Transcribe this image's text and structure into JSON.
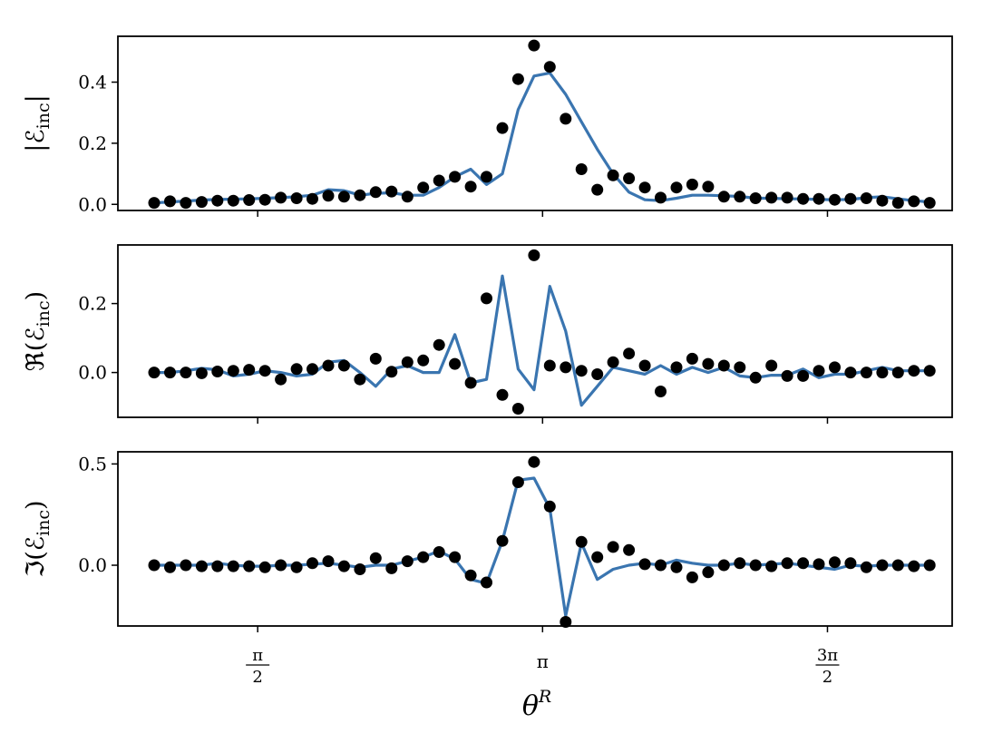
{
  "chart_data": {
    "type": "line",
    "xlabel": "θR",
    "xlabel_base": "θ",
    "xlabel_sup": "R",
    "x_ticks": [
      {
        "value": 1.5708,
        "label": "π/2",
        "num": "π",
        "den": "2"
      },
      {
        "value": 3.1416,
        "label": "π",
        "num": "π",
        "den": ""
      },
      {
        "value": 4.7124,
        "label": "3π/2",
        "num": "3π",
        "den": "2"
      }
    ],
    "xlim": [
      0.8,
      5.4
    ],
    "x": [
      1.0,
      1.0873,
      1.1745,
      1.2618,
      1.3491,
      1.4363,
      1.5236,
      1.6109,
      1.6981,
      1.7854,
      1.8727,
      1.9599,
      2.0472,
      2.1345,
      2.2217,
      2.309,
      2.3963,
      2.4835,
      2.5708,
      2.6581,
      2.7453,
      2.8326,
      2.9199,
      3.0071,
      3.0944,
      3.1817,
      3.2689,
      3.3562,
      3.4435,
      3.5307,
      3.618,
      3.7053,
      3.7925,
      3.8798,
      3.9671,
      4.0543,
      4.1416,
      4.2289,
      4.3161,
      4.4034,
      4.4907,
      4.5779,
      4.6652,
      4.7525,
      4.8397,
      4.927,
      5.0143,
      5.1015,
      5.1888,
      5.2761
    ],
    "panels": [
      {
        "ylabel_prefix": "|",
        "ylabel_var": "ℰ",
        "ylabel_sub": "inc",
        "ylabel_suffix": "|",
        "ylabel": "|ℰinc|",
        "ylim": [
          -0.02,
          0.55
        ],
        "yticks": [
          0.0,
          0.2,
          0.4
        ],
        "ytick_labels": [
          "0.0",
          "0.2",
          "0.4"
        ],
        "series": [
          {
            "kind": "line",
            "color": "#3a75b0",
            "values": [
              0.005,
              0.008,
              0.011,
              0.014,
              0.016,
              0.017,
              0.018,
              0.02,
              0.022,
              0.025,
              0.03,
              0.048,
              0.045,
              0.03,
              0.036,
              0.038,
              0.03,
              0.03,
              0.055,
              0.09,
              0.115,
              0.065,
              0.1,
              0.31,
              0.42,
              0.43,
              0.36,
              0.27,
              0.18,
              0.1,
              0.04,
              0.015,
              0.012,
              0.02,
              0.03,
              0.03,
              0.028,
              0.026,
              0.02,
              0.02,
              0.018,
              0.018,
              0.016,
              0.015,
              0.016,
              0.022,
              0.025,
              0.018,
              0.012,
              0.008
            ]
          },
          {
            "kind": "scatter",
            "color": "#000000",
            "values": [
              0.005,
              0.01,
              0.005,
              0.008,
              0.012,
              0.012,
              0.014,
              0.015,
              0.022,
              0.02,
              0.018,
              0.028,
              0.025,
              0.03,
              0.04,
              0.042,
              0.025,
              0.055,
              0.078,
              0.09,
              0.058,
              0.09,
              0.25,
              0.41,
              0.52,
              0.45,
              0.28,
              0.115,
              0.048,
              0.095,
              0.085,
              0.055,
              0.022,
              0.055,
              0.065,
              0.058,
              0.025,
              0.025,
              0.02,
              0.022,
              0.022,
              0.018,
              0.018,
              0.015,
              0.018,
              0.02,
              0.012,
              0.005,
              0.01,
              0.005
            ]
          }
        ]
      },
      {
        "ylabel_prefix": "ℜ(",
        "ylabel_var": "ℰ",
        "ylabel_sub": "inc",
        "ylabel_suffix": ")",
        "ylabel": "ℜ(ℰinc)",
        "ylim": [
          -0.13,
          0.37
        ],
        "yticks": [
          0.0,
          0.2
        ],
        "ytick_labels": [
          "0.0",
          "0.2"
        ],
        "series": [
          {
            "kind": "line",
            "color": "#3a75b0",
            "values": [
              0.0,
              0.0,
              0.005,
              0.012,
              0.008,
              -0.01,
              -0.005,
              0.005,
              0.0,
              -0.01,
              -0.005,
              0.03,
              0.035,
              0.0,
              -0.04,
              0.01,
              0.02,
              0.0,
              0.0,
              0.11,
              -0.03,
              -0.02,
              0.28,
              0.01,
              -0.05,
              0.25,
              0.12,
              -0.095,
              -0.04,
              0.015,
              0.005,
              -0.005,
              0.02,
              -0.005,
              0.015,
              0.0,
              0.015,
              -0.01,
              -0.015,
              -0.008,
              -0.008,
              0.01,
              -0.015,
              -0.005,
              -0.005,
              0.005,
              0.015,
              0.005,
              0.005,
              0.005
            ]
          },
          {
            "kind": "scatter",
            "color": "#000000",
            "values": [
              0.0,
              0.0,
              0.0,
              -0.002,
              0.003,
              0.005,
              0.008,
              0.005,
              -0.02,
              0.01,
              0.01,
              0.02,
              0.02,
              -0.02,
              0.04,
              0.002,
              0.03,
              0.035,
              0.08,
              0.025,
              -0.03,
              0.215,
              -0.065,
              -0.105,
              0.34,
              0.02,
              0.015,
              0.005,
              -0.005,
              0.03,
              0.055,
              0.02,
              -0.055,
              0.015,
              0.04,
              0.025,
              0.02,
              0.015,
              -0.015,
              0.02,
              -0.01,
              -0.01,
              0.005,
              0.015,
              0.0,
              0.0,
              0.0,
              0.0,
              0.005,
              0.005
            ]
          }
        ]
      },
      {
        "ylabel_prefix": "ℑ(",
        "ylabel_var": "ℰ",
        "ylabel_sub": "inc",
        "ylabel_suffix": ")",
        "ylabel": "ℑ(ℰinc)",
        "ylim": [
          -0.3,
          0.56
        ],
        "yticks": [
          0.0,
          0.5
        ],
        "ytick_labels": [
          "0.0",
          "0.5"
        ],
        "series": [
          {
            "kind": "line",
            "color": "#3a75b0",
            "values": [
              0.0,
              0.0,
              0.0,
              0.0,
              0.01,
              0.0,
              -0.005,
              -0.005,
              0.0,
              0.0,
              0.005,
              0.01,
              0.0,
              -0.01,
              0.0,
              0.0,
              0.02,
              0.04,
              0.07,
              0.03,
              -0.07,
              -0.09,
              0.12,
              0.42,
              0.43,
              0.28,
              -0.25,
              0.11,
              -0.07,
              -0.02,
              0.0,
              0.01,
              0.0,
              0.025,
              0.01,
              0.0,
              0.0,
              0.01,
              0.0,
              0.005,
              0.01,
              0.0,
              -0.01,
              -0.02,
              0.0,
              -0.005,
              0.0,
              0.0,
              0.0,
              0.0
            ]
          },
          {
            "kind": "scatter",
            "color": "#000000",
            "values": [
              0.0,
              -0.01,
              0.0,
              -0.005,
              -0.005,
              -0.005,
              -0.005,
              -0.01,
              0.0,
              -0.01,
              0.01,
              0.02,
              -0.005,
              -0.02,
              0.035,
              -0.015,
              0.02,
              0.04,
              0.065,
              0.04,
              -0.05,
              -0.085,
              0.12,
              0.41,
              0.51,
              0.29,
              -0.28,
              0.115,
              0.04,
              0.09,
              0.075,
              0.005,
              0.0,
              -0.01,
              -0.06,
              -0.035,
              0.0,
              0.01,
              0.0,
              -0.005,
              0.01,
              0.01,
              0.005,
              0.015,
              0.01,
              -0.01,
              0.0,
              0.0,
              -0.005,
              0.0
            ]
          }
        ]
      }
    ]
  }
}
